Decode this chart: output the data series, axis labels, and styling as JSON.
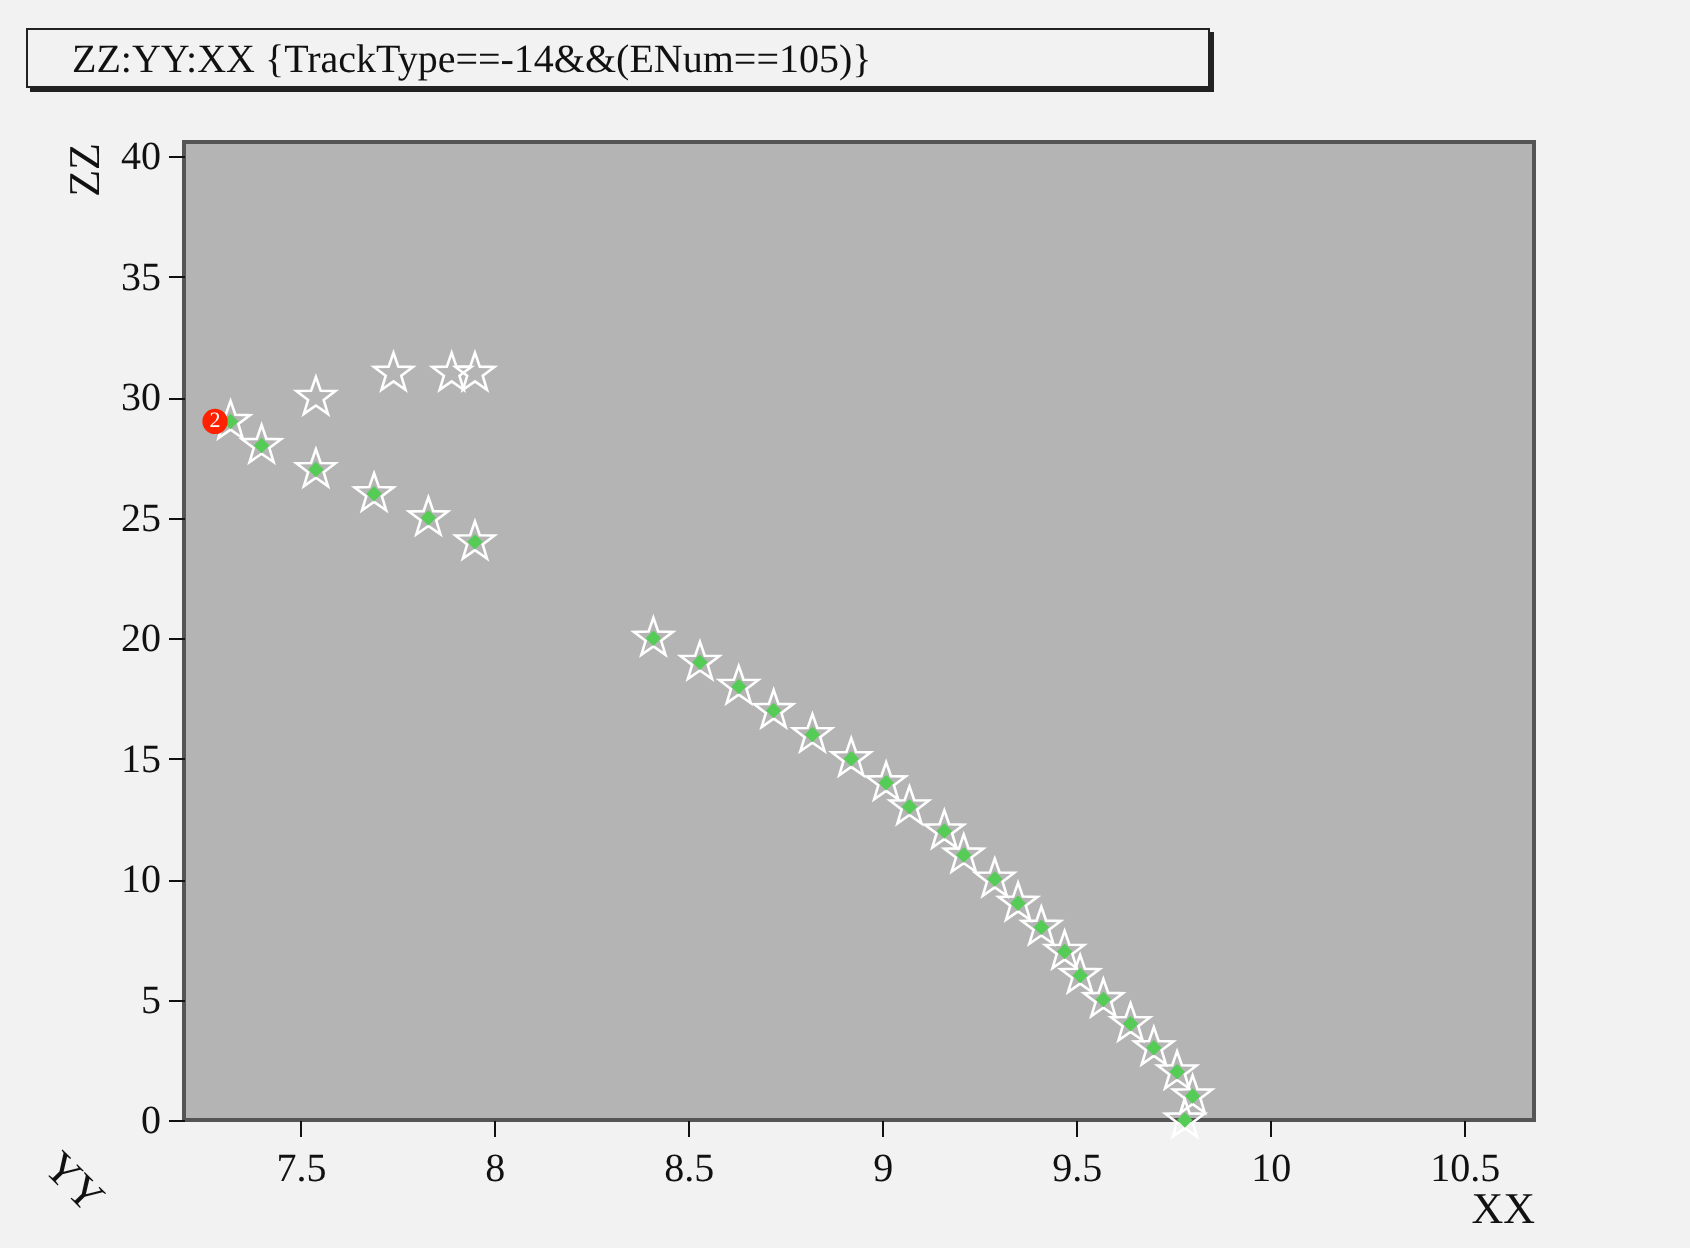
{
  "chart_data": {
    "type": "scatter",
    "title": "ZZ:YY:XX {TrackType==-14&&(ENum==105)}",
    "xlabel": "XX",
    "ylabel": "ZZ",
    "xlim": [
      7.2,
      10.68
    ],
    "ylim": [
      0,
      40.6
    ],
    "xticks": [
      7.5,
      8,
      8.5,
      9,
      9.5,
      10,
      10.5
    ],
    "yticks": [
      0,
      5,
      10,
      15,
      20,
      25,
      30,
      35,
      40
    ],
    "series": [
      {
        "color": "#ffffff",
        "marker": "star",
        "x": [
          7.54,
          7.74,
          7.89,
          7.95,
          7.32,
          7.4,
          7.54,
          7.69,
          7.83,
          7.95,
          8.41,
          8.53,
          8.63,
          8.72,
          8.82,
          8.92,
          9.01,
          9.07,
          9.16,
          9.21,
          9.29,
          9.35,
          9.41,
          9.47,
          9.51,
          9.57,
          9.64,
          9.7,
          9.76,
          9.8,
          9.78
        ],
        "values": [
          30,
          31,
          31,
          31,
          29,
          28,
          27,
          26,
          25,
          24,
          20,
          19,
          18,
          17,
          16,
          15,
          14,
          13,
          12,
          11,
          10,
          9,
          8,
          7,
          6,
          5,
          4,
          3,
          2,
          1,
          0
        ]
      },
      {
        "color": "#55cc55",
        "marker": "diamond",
        "x": [
          7.32,
          7.4,
          7.54,
          7.69,
          7.83,
          7.95,
          8.41,
          8.53,
          8.63,
          8.72,
          8.82,
          8.92,
          9.01,
          9.07,
          9.16,
          9.21,
          9.29,
          9.35,
          9.41,
          9.47,
          9.51,
          9.57,
          9.64,
          9.7,
          9.76,
          9.8,
          9.78
        ],
        "values": [
          29,
          28,
          27,
          26,
          25,
          24,
          20,
          19,
          18,
          17,
          16,
          15,
          14,
          13,
          12,
          11,
          10,
          9,
          8,
          7,
          6,
          5,
          4,
          3,
          2,
          1,
          0
        ]
      },
      {
        "color": "#ff2200",
        "marker": "circle",
        "x": [
          7.28
        ],
        "values": [
          29
        ]
      }
    ],
    "annotations": [
      {
        "text": "2",
        "x": 7.28,
        "y": 29
      },
      "YY"
    ],
    "grid": false
  }
}
